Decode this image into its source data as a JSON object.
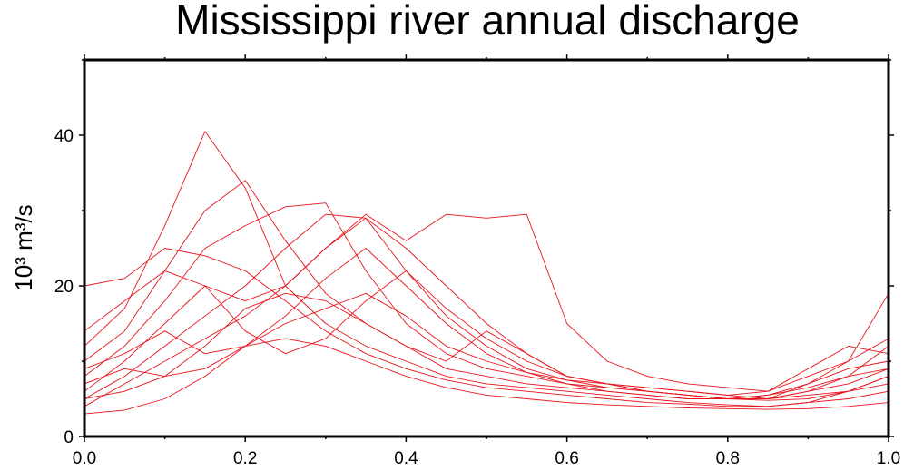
{
  "chart_data": {
    "type": "line",
    "title": "Mississippi river annual discharge",
    "ylabel": "10³ m³/s",
    "xlabel": "",
    "xlim": [
      0.0,
      1.0
    ],
    "ylim": [
      0,
      50
    ],
    "x_ticks": [
      "0.0",
      "0.2",
      "0.4",
      "0.6",
      "0.8",
      "1.0"
    ],
    "y_ticks": [
      "0",
      "20",
      "40"
    ],
    "grid": false,
    "line_color": "#e8141c",
    "x": [
      0.0,
      0.05,
      0.1,
      0.15,
      0.2,
      0.25,
      0.3,
      0.35,
      0.4,
      0.45,
      0.5,
      0.55,
      0.6,
      0.65,
      0.7,
      0.75,
      0.8,
      0.85,
      0.9,
      0.95,
      1.0
    ],
    "series": [
      {
        "values": [
          12,
          17,
          28,
          40.5,
          33,
          20,
          15,
          12,
          10,
          8,
          7,
          6.5,
          6,
          5.5,
          5,
          4.5,
          4.2,
          4,
          4.5,
          6,
          8
        ]
      },
      {
        "values": [
          10,
          14,
          22,
          30,
          34,
          26,
          19,
          15,
          12,
          9,
          8,
          7,
          6.5,
          6,
          5.5,
          5,
          5,
          5.5,
          7,
          9,
          10
        ]
      },
      {
        "values": [
          8,
          12,
          18,
          25,
          28,
          30.5,
          31,
          22,
          15,
          11,
          9,
          8,
          7,
          6.5,
          6,
          5.5,
          5,
          5,
          6,
          8,
          12
        ]
      },
      {
        "values": [
          6,
          10,
          15,
          20,
          18,
          20,
          25,
          29.5,
          26,
          29.5,
          29,
          29.5,
          15,
          10,
          8,
          7,
          6.5,
          6,
          8,
          10,
          19
        ]
      },
      {
        "values": [
          5,
          8,
          12,
          16,
          20,
          25,
          29.5,
          29,
          25,
          20,
          15,
          11,
          8,
          7,
          6,
          5.5,
          5,
          5,
          5.5,
          6,
          7
        ]
      },
      {
        "values": [
          4,
          7,
          10,
          13,
          16,
          20,
          25,
          29,
          22,
          17,
          13,
          10,
          8,
          7,
          6.5,
          6,
          5.5,
          5,
          6,
          7,
          9
        ]
      },
      {
        "values": [
          14,
          18,
          22,
          20,
          14,
          11,
          13,
          18,
          22,
          16,
          12,
          9,
          7.5,
          6.5,
          6,
          5.5,
          5,
          5,
          7,
          10,
          13
        ]
      },
      {
        "values": [
          20,
          21,
          25,
          24,
          22,
          18,
          14,
          11,
          9,
          7.5,
          6.5,
          6,
          5.5,
          5,
          4.5,
          4.3,
          4,
          4,
          4.5,
          5,
          6
        ]
      },
      {
        "values": [
          9,
          11,
          14,
          11,
          12,
          15,
          17,
          19,
          16,
          12,
          10,
          8.5,
          7.5,
          7,
          6.5,
          6,
          5.5,
          6,
          9,
          12,
          11
        ]
      },
      {
        "values": [
          5,
          6,
          8,
          9,
          12,
          16,
          21,
          25,
          20,
          15,
          11,
          8.5,
          7,
          6,
          5.5,
          5,
          5,
          5.5,
          6.5,
          8,
          9
        ]
      },
      {
        "values": [
          3,
          3.5,
          5,
          8,
          12,
          13,
          12,
          10,
          8,
          6.5,
          5.5,
          5,
          4.5,
          4.2,
          4,
          3.8,
          3.7,
          3.6,
          3.7,
          4,
          4.5
        ]
      },
      {
        "values": [
          7,
          9,
          8,
          12,
          17,
          19,
          18,
          15,
          12,
          10,
          14,
          11,
          8,
          7,
          6,
          5.5,
          5,
          4.8,
          5,
          6,
          8
        ]
      }
    ]
  }
}
